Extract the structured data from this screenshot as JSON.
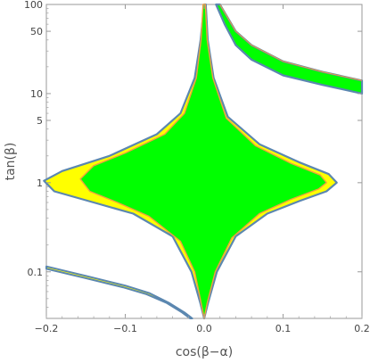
{
  "chart_data": {
    "type": "area",
    "xlabel": "cos(β−α)",
    "ylabel": "tan(β)",
    "xlim": [
      -0.2,
      0.2
    ],
    "ylim": [
      0.03,
      100
    ],
    "y_scale": "log",
    "x_ticks": [
      {
        "value": -0.2,
        "label": "−0.2"
      },
      {
        "value": -0.1,
        "label": "−0.1"
      },
      {
        "value": 0.0,
        "label": "0.0"
      },
      {
        "value": 0.1,
        "label": "0.1"
      },
      {
        "value": 0.2,
        "label": "0.2"
      }
    ],
    "y_ticks": [
      {
        "value": 0.1,
        "label": "0.1"
      },
      {
        "value": 1,
        "label": "1"
      },
      {
        "value": 5,
        "label": "5"
      },
      {
        "value": 10,
        "label": "10"
      },
      {
        "value": 50,
        "label": "50"
      },
      {
        "value": 100,
        "label": "100"
      }
    ],
    "grid": false,
    "legend": "none",
    "colors": {
      "outer_region": "#ffff00",
      "inner_region": "#00ff00",
      "outer_outline": "#5b87b0",
      "inner_outline": "#f0a040"
    },
    "regions": {
      "central_outer": {
        "fill": "#ffff00",
        "stroke": "#5b87b0",
        "points": [
          [
            0.0,
            100
          ],
          [
            -0.0045,
            40
          ],
          [
            -0.012,
            15
          ],
          [
            -0.03,
            6
          ],
          [
            -0.06,
            3.5
          ],
          [
            -0.12,
            2
          ],
          [
            -0.18,
            1.35
          ],
          [
            -0.203,
            1.05
          ],
          [
            -0.19,
            0.8
          ],
          [
            -0.14,
            0.6
          ],
          [
            -0.09,
            0.45
          ],
          [
            -0.04,
            0.25
          ],
          [
            -0.016,
            0.1
          ],
          [
            -0.005,
            0.045
          ],
          [
            0.0,
            0.03
          ],
          [
            0.005,
            0.045
          ],
          [
            0.016,
            0.1
          ],
          [
            0.04,
            0.25
          ],
          [
            0.08,
            0.45
          ],
          [
            0.12,
            0.62
          ],
          [
            0.155,
            0.8
          ],
          [
            0.168,
            1.0
          ],
          [
            0.158,
            1.25
          ],
          [
            0.12,
            1.7
          ],
          [
            0.07,
            2.7
          ],
          [
            0.03,
            5.5
          ],
          [
            0.012,
            15
          ],
          [
            0.0045,
            40
          ],
          [
            0.002,
            100
          ]
        ]
      },
      "central_inner": {
        "fill": "#00ff00",
        "stroke": "#f0a040",
        "points": [
          [
            -0.0015,
            100
          ],
          [
            -0.004,
            40
          ],
          [
            -0.01,
            15
          ],
          [
            -0.025,
            6
          ],
          [
            -0.05,
            3.5
          ],
          [
            -0.1,
            2.15
          ],
          [
            -0.14,
            1.55
          ],
          [
            -0.157,
            1.1
          ],
          [
            -0.145,
            0.8
          ],
          [
            -0.11,
            0.6
          ],
          [
            -0.07,
            0.42
          ],
          [
            -0.03,
            0.22
          ],
          [
            -0.012,
            0.1
          ],
          [
            -0.004,
            0.045
          ],
          [
            0.0,
            0.03
          ],
          [
            0.004,
            0.045
          ],
          [
            0.014,
            0.1
          ],
          [
            0.035,
            0.24
          ],
          [
            0.07,
            0.45
          ],
          [
            0.11,
            0.65
          ],
          [
            0.145,
            0.85
          ],
          [
            0.155,
            1.0
          ],
          [
            0.147,
            1.22
          ],
          [
            0.11,
            1.65
          ],
          [
            0.065,
            2.6
          ],
          [
            0.028,
            5.3
          ],
          [
            0.011,
            15
          ],
          [
            0.0038,
            40
          ],
          [
            0.0015,
            100
          ]
        ]
      },
      "upper_right_band": {
        "fill": "#00ff00",
        "stroke_outer": "#5b87b0",
        "stroke_inner": "#f0a040",
        "upper_edge": [
          [
            0.02,
            100
          ],
          [
            0.04,
            50
          ],
          [
            0.06,
            35
          ],
          [
            0.1,
            23
          ],
          [
            0.15,
            17.5
          ],
          [
            0.2,
            14
          ]
        ],
        "lower_edge": [
          [
            0.2,
            10
          ],
          [
            0.15,
            12.5
          ],
          [
            0.1,
            16
          ],
          [
            0.06,
            24
          ],
          [
            0.04,
            35
          ],
          [
            0.026,
            60
          ],
          [
            0.015,
            100
          ]
        ]
      },
      "lower_left_band": {
        "fill": "#ffff00",
        "stroke": "#5b87b0",
        "upper_edge": [
          [
            -0.2,
            0.115
          ],
          [
            -0.15,
            0.09
          ],
          [
            -0.1,
            0.07
          ],
          [
            -0.07,
            0.058
          ],
          [
            -0.045,
            0.045
          ],
          [
            -0.025,
            0.035
          ],
          [
            -0.015,
            0.03
          ]
        ],
        "lower_edge": [
          [
            -0.018,
            0.03
          ],
          [
            -0.028,
            0.035
          ],
          [
            -0.048,
            0.045
          ],
          [
            -0.073,
            0.056
          ],
          [
            -0.103,
            0.067
          ],
          [
            -0.153,
            0.086
          ],
          [
            -0.2,
            0.108
          ]
        ]
      }
    }
  }
}
